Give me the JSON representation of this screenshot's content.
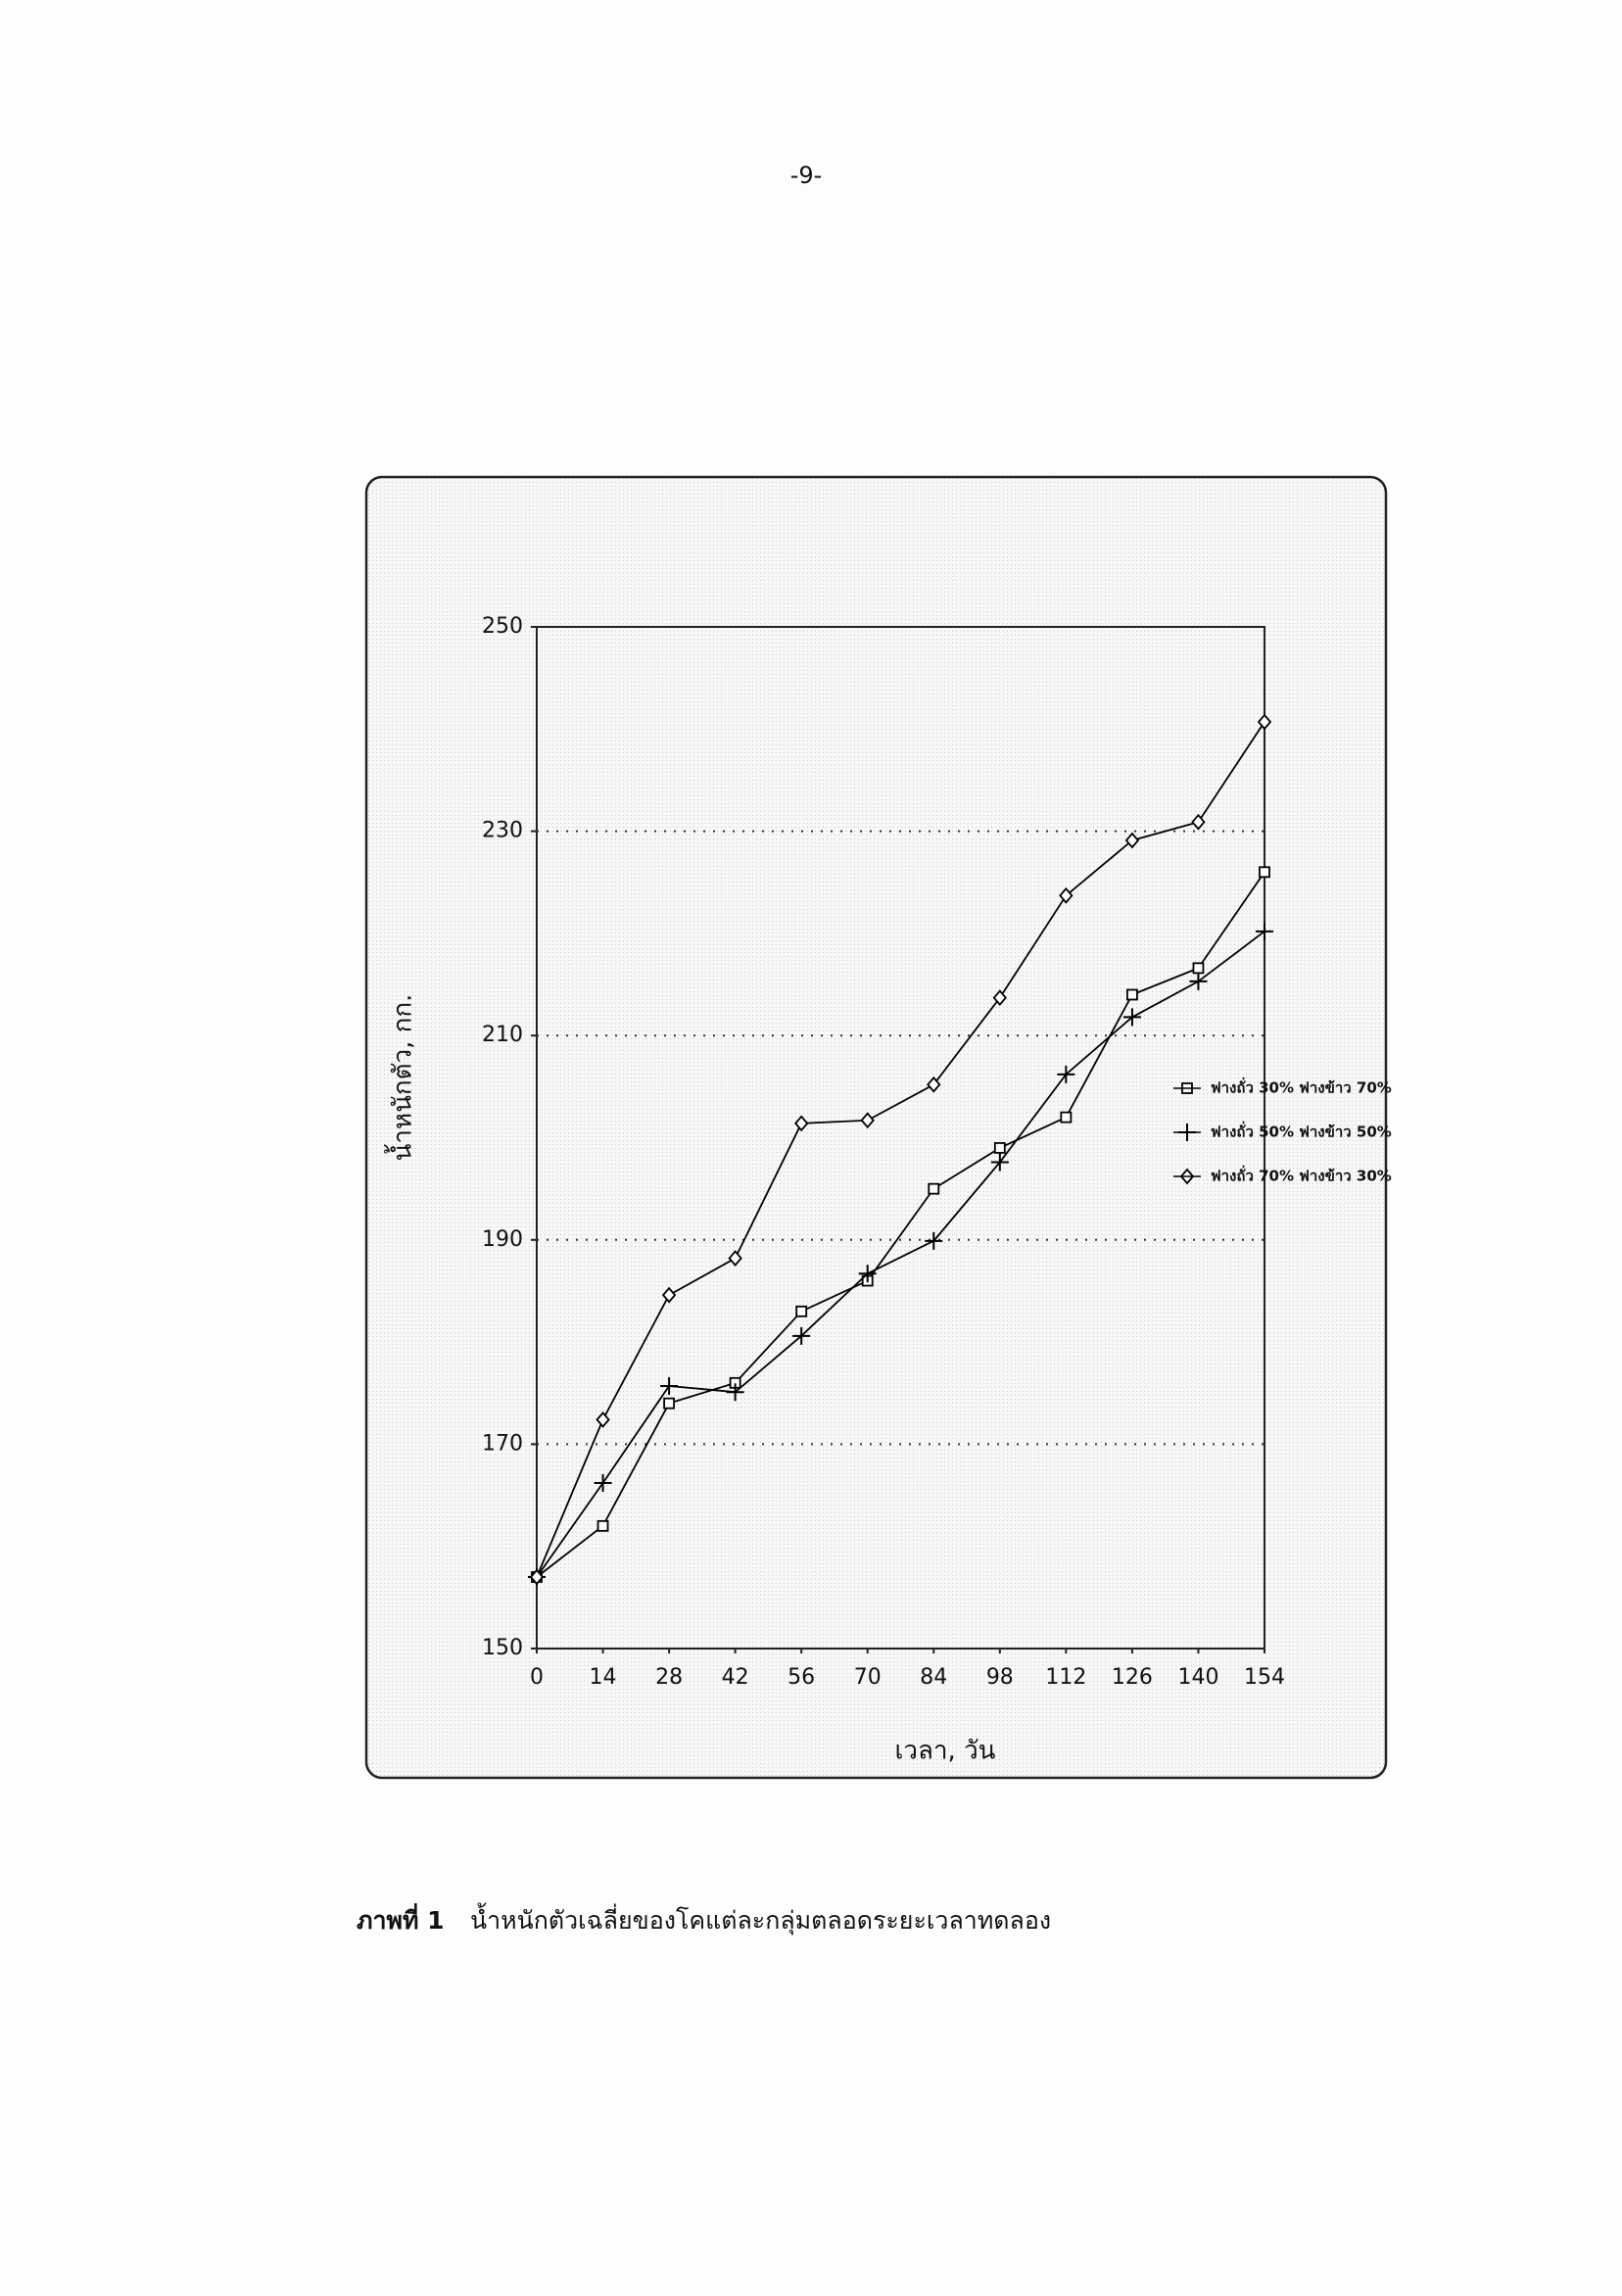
{
  "page_number": "-9-",
  "caption": {
    "label": "ภาพที่ 1",
    "text": "น้ำหนักตัวเฉลี่ยของโคแต่ละกลุ่มตลอดระยะเวลาทดลอง"
  },
  "chart_data": {
    "type": "line",
    "xlabel": "เวลา, วัน",
    "ylabel": "น้ำหนักตัว, กก.",
    "x": [
      0,
      14,
      28,
      42,
      56,
      70,
      84,
      98,
      112,
      126,
      140,
      154
    ],
    "xlim": [
      0,
      154
    ],
    "xticks": [
      0,
      14,
      28,
      42,
      56,
      70,
      84,
      98,
      112,
      126,
      140,
      154
    ],
    "ylim": [
      150,
      250
    ],
    "yticks": [
      150,
      170,
      190,
      210,
      230,
      250
    ],
    "grid": true,
    "series": [
      {
        "name": "ฟางถั่ว 30% ฟางข้าว 70%",
        "color": "#000000",
        "marker": "square",
        "values": [
          157,
          162,
          174,
          176,
          183,
          186,
          195,
          199,
          202,
          214,
          216.6,
          226
        ]
      },
      {
        "name": "ฟางถั่ว 50% ฟางข้าว 50%",
        "color": "#000000",
        "marker": "plus",
        "values": [
          157,
          166.2,
          175.7,
          175.1,
          180.6,
          186.7,
          189.9,
          197.6,
          206.2,
          211.8,
          215.3,
          220.2
        ]
      },
      {
        "name": "ฟางถั่ว 70% ฟางข้าว 30%",
        "color": "#000000",
        "marker": "diamond",
        "values": [
          157,
          172.4,
          184.6,
          188.2,
          201.4,
          201.7,
          205.2,
          213.7,
          223.7,
          229.1,
          230.9,
          240.7
        ]
      }
    ]
  }
}
